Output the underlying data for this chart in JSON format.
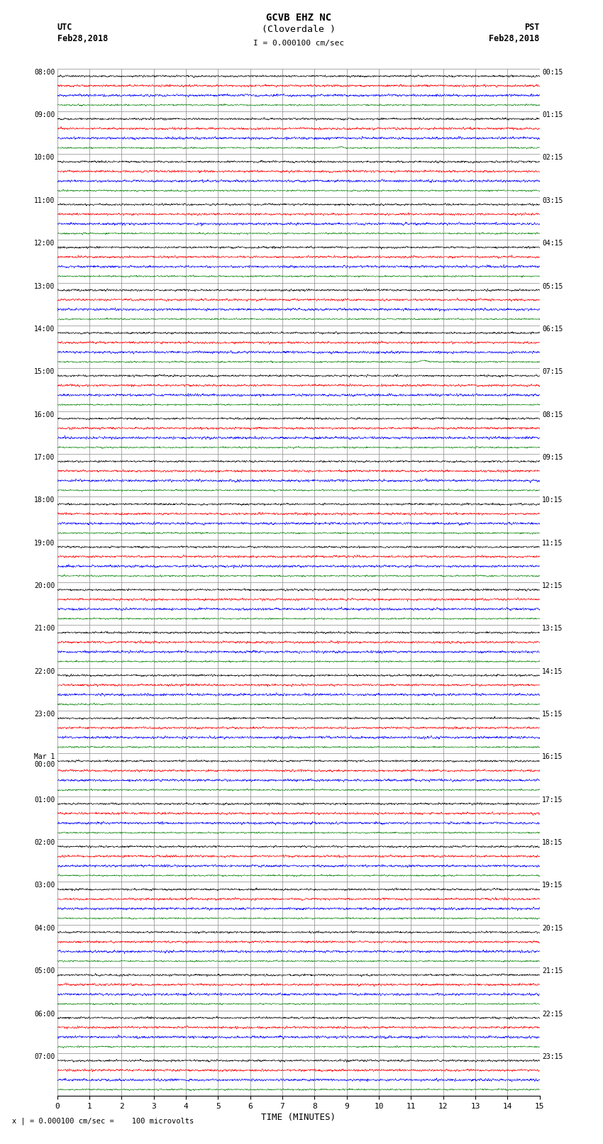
{
  "title_line1": "GCVB EHZ NC",
  "title_line2": "(Cloverdale )",
  "scale_label": "I = 0.000100 cm/sec",
  "left_header_line1": "UTC",
  "left_header_line2": "Feb28,2018",
  "right_header_line1": "PST",
  "right_header_line2": "Feb28,2018",
  "xlabel": "TIME (MINUTES)",
  "footnote": "x | = 0.000100 cm/sec =    100 microvolts",
  "num_rows": 24,
  "x_ticks": [
    0,
    1,
    2,
    3,
    4,
    5,
    6,
    7,
    8,
    9,
    10,
    11,
    12,
    13,
    14,
    15
  ],
  "colors": [
    "black",
    "red",
    "blue",
    "green"
  ],
  "background": "white",
  "fig_width": 8.5,
  "fig_height": 16.13,
  "noise_amp": [
    0.018,
    0.02,
    0.022,
    0.014
  ],
  "grid_color": "#888888",
  "left_labels": [
    "08:00",
    "09:00",
    "10:00",
    "11:00",
    "12:00",
    "13:00",
    "14:00",
    "15:00",
    "16:00",
    "17:00",
    "18:00",
    "19:00",
    "20:00",
    "21:00",
    "22:00",
    "23:00",
    "Mar 1\n00:00",
    "01:00",
    "02:00",
    "03:00",
    "04:00",
    "05:00",
    "06:00",
    "07:00"
  ],
  "right_labels": [
    "00:15",
    "01:15",
    "02:15",
    "03:15",
    "04:15",
    "05:15",
    "06:15",
    "07:15",
    "08:15",
    "09:15",
    "10:15",
    "11:15",
    "12:15",
    "13:15",
    "14:15",
    "15:15",
    "16:15",
    "17:15",
    "18:15",
    "19:15",
    "20:15",
    "21:15",
    "22:15",
    "23:15"
  ],
  "trace_offsets": [
    0.825,
    0.6,
    0.375,
    0.15
  ],
  "lw": 0.4,
  "npts": 2700
}
